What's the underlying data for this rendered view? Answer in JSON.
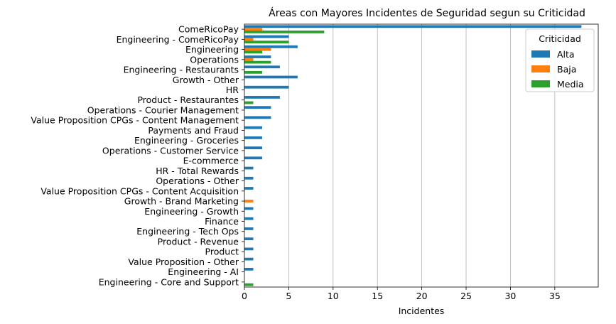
{
  "chart_data": {
    "type": "bar",
    "orientation": "horizontal",
    "title": "Áreas con Mayores Incidentes de Seguridad segun su Criticidad",
    "xlabel": "Incidentes",
    "ylabel": "",
    "xlim": [
      0,
      39.9
    ],
    "xticks": [
      0,
      5,
      10,
      15,
      20,
      25,
      30,
      35
    ],
    "grid": "x",
    "legend": {
      "title": "Criticidad",
      "placement": "top-right"
    },
    "categories": [
      "ComeRicoPay",
      "Engineering - ComeRicoPay",
      "Engineering",
      "Operations",
      "Engineering - Restaurants",
      "Growth - Other",
      "HR",
      "Product - Restaurantes",
      "Operations - Courier Management",
      "Value Proposition CPGs - Content Management",
      "Payments and Fraud",
      "Engineering - Groceries",
      "Operations - Customer Service",
      "E-commerce",
      "HR - Total Rewards",
      "Operations - Other",
      "Value Proposition CPGs - Content Acquisition",
      "Growth - Brand Marketing",
      "Engineering - Growth",
      "Finance",
      "Engineering - Tech Ops",
      "Product - Revenue",
      "Product",
      "Value Proposition - Other",
      "Engineering - AI",
      "Engineering - Core and Support"
    ],
    "series": [
      {
        "name": "Alta",
        "color": "#1f77b4",
        "values": [
          38,
          5,
          6,
          3,
          4,
          6,
          5,
          4,
          3,
          3,
          2,
          2,
          2,
          2,
          1,
          1,
          1,
          0,
          1,
          1,
          1,
          1,
          1,
          1,
          1,
          0
        ]
      },
      {
        "name": "Baja",
        "color": "#ff7f0e",
        "values": [
          2,
          1,
          3,
          1,
          0,
          0,
          0,
          0,
          0,
          0,
          0,
          0,
          0,
          0,
          0,
          0,
          0,
          1,
          0,
          0,
          0,
          0,
          0,
          0,
          0,
          0
        ]
      },
      {
        "name": "Media",
        "color": "#2ca02c",
        "values": [
          9,
          5,
          2,
          3,
          2,
          0,
          0,
          1,
          0,
          0,
          0,
          0,
          0,
          0,
          0,
          0,
          0,
          0,
          0,
          0,
          0,
          0,
          0,
          0,
          0,
          1
        ]
      }
    ]
  }
}
